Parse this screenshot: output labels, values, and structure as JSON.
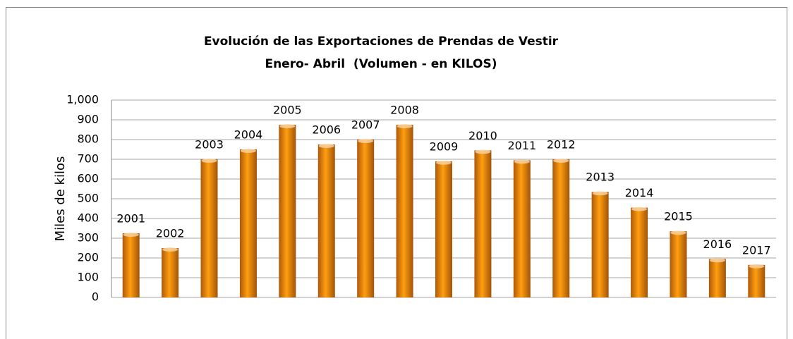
{
  "chart_data": {
    "type": "bar",
    "title": "Evolución de las Exportaciones de Prendas de Vestir",
    "subtitle": "Enero- Abril  (Volumen - en KILOS)",
    "y_label": "Miles de kilos",
    "categories": [
      "2001",
      "2002",
      "2003",
      "2004",
      "2005",
      "2006",
      "2007",
      "2008",
      "2009",
      "2010",
      "2011",
      "2012",
      "2013",
      "2014",
      "2015",
      "2016",
      "2017"
    ],
    "values": [
      325,
      250,
      700,
      750,
      875,
      775,
      800,
      875,
      690,
      745,
      695,
      700,
      535,
      455,
      335,
      195,
      165
    ],
    "color": "#e8760c",
    "ylim": [
      0,
      1000
    ],
    "yticks": [
      0,
      100,
      200,
      300,
      400,
      500,
      600,
      700,
      800,
      900,
      {
        "value": 1000,
        "label": "1,000"
      }
    ],
    "grid": true
  }
}
